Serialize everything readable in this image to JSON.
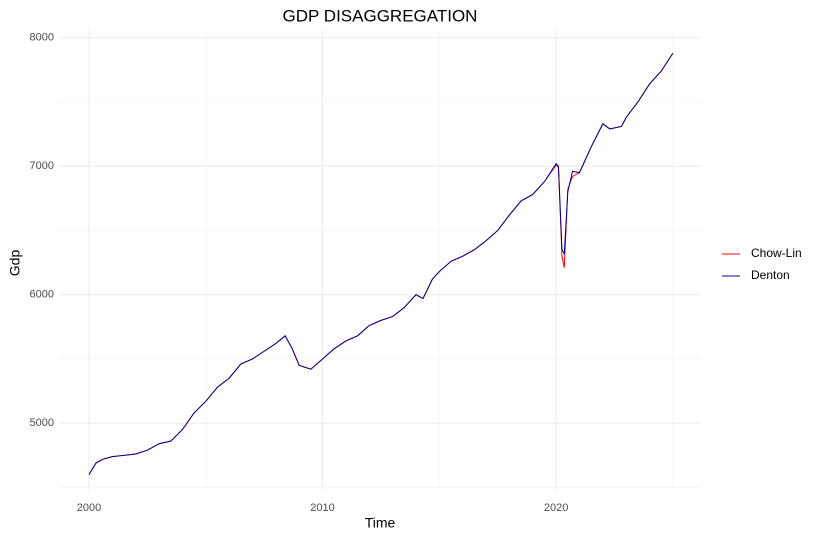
{
  "chart_data": {
    "type": "line",
    "title": "GDP DISAGGREGATION",
    "x_label": "Time",
    "y_label": "Gdp",
    "x": [
      2000.0,
      2000.3,
      2000.6,
      2001.0,
      2001.5,
      2002.0,
      2002.5,
      2003.0,
      2003.5,
      2004.0,
      2004.5,
      2005.0,
      2005.5,
      2006.0,
      2006.5,
      2007.0,
      2007.5,
      2008.0,
      2008.4,
      2008.7,
      2009.0,
      2009.5,
      2010.0,
      2010.5,
      2011.0,
      2011.5,
      2012.0,
      2012.5,
      2013.0,
      2013.5,
      2014.0,
      2014.3,
      2014.7,
      2015.0,
      2015.5,
      2016.0,
      2016.5,
      2017.0,
      2017.5,
      2018.0,
      2018.5,
      2019.0,
      2019.5,
      2020.0,
      2020.1,
      2020.25,
      2020.35,
      2020.5,
      2020.7,
      2021.0,
      2021.5,
      2022.0,
      2022.3,
      2022.8,
      2023.0,
      2023.5,
      2024.0,
      2024.5,
      2025.0
    ],
    "series": [
      {
        "name": "Chow-Lin",
        "color": "#ff0000",
        "values": [
          4600,
          4690,
          4720,
          4740,
          4750,
          4760,
          4790,
          4840,
          4860,
          4950,
          5080,
          5170,
          5280,
          5350,
          5460,
          5500,
          5560,
          5620,
          5680,
          5580,
          5450,
          5420,
          5500,
          5580,
          5640,
          5680,
          5760,
          5800,
          5830,
          5900,
          6000,
          5970,
          6120,
          6180,
          6260,
          6300,
          6350,
          6420,
          6500,
          6620,
          6730,
          6780,
          6880,
          7010,
          6990,
          6300,
          6210,
          6820,
          6920,
          6950,
          7150,
          7330,
          7290,
          7310,
          7380,
          7500,
          7640,
          7740,
          7880
        ]
      },
      {
        "name": "Denton",
        "color": "#00008b",
        "values": [
          4600,
          4690,
          4720,
          4740,
          4750,
          4760,
          4790,
          4840,
          4860,
          4950,
          5080,
          5170,
          5280,
          5350,
          5460,
          5500,
          5560,
          5620,
          5680,
          5580,
          5450,
          5420,
          5500,
          5580,
          5640,
          5680,
          5760,
          5800,
          5830,
          5900,
          6000,
          5970,
          6120,
          6180,
          6260,
          6300,
          6350,
          6420,
          6500,
          6620,
          6730,
          6780,
          6880,
          7020,
          7000,
          6350,
          6320,
          6800,
          6960,
          6950,
          7150,
          7330,
          7290,
          7310,
          7380,
          7500,
          7640,
          7740,
          7880
        ]
      }
    ],
    "xlim": [
      1998.76,
      2026.16
    ],
    "ylim": [
      4480,
      8060
    ],
    "xticks": [
      2000,
      2010,
      2020
    ],
    "yticks": [
      5000,
      6000,
      7000,
      8000
    ],
    "minor_xticks": [
      2005,
      2015,
      2025
    ],
    "minor_yticks": [
      4500,
      5500,
      6500,
      7500
    ],
    "grid": true,
    "legend": "right"
  }
}
